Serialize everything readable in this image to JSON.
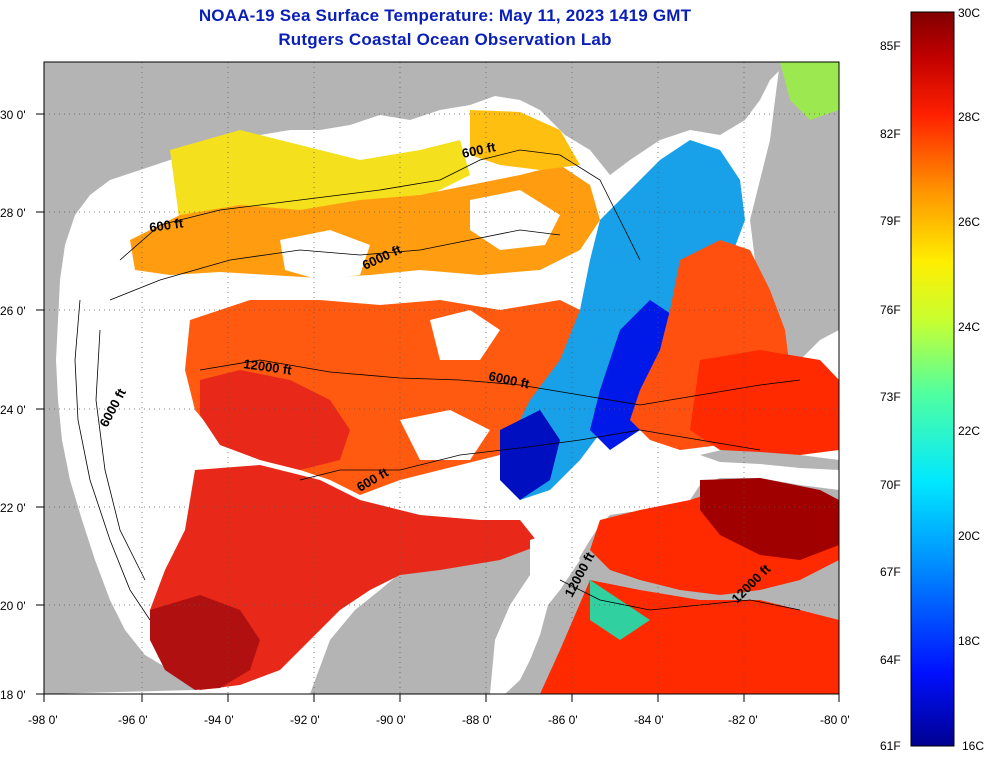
{
  "title": "NOAA-19 Sea Surface Temperature:  May 11, 2023 1419 GMT",
  "subtitle": "Rutgers Coastal Ocean Observation Lab",
  "lon_ticks": [
    "-98 0'",
    "-96 0'",
    "-94 0'",
    "-92 0'",
    "-90 0'",
    "-88 0'",
    "-86 0'",
    "-84 0'",
    "-82 0'",
    "-80 0'"
  ],
  "lat_ticks": [
    "30 0'",
    "28 0'",
    "26 0'",
    "24 0'",
    "22 0'",
    "20 0'",
    "18 0'"
  ],
  "colorbar": {
    "fahrenheit_labels": [
      "85F",
      "82F",
      "79F",
      "76F",
      "73F",
      "70F",
      "67F",
      "64F",
      "61F"
    ],
    "celsius_labels": [
      "30C",
      "28C",
      "26C",
      "24C",
      "22C",
      "20C",
      "18C",
      "16C"
    ],
    "range_c": [
      16,
      30
    ]
  },
  "contour_labels": [
    "600 ft",
    "600 ft",
    "6000 ft",
    "12000 ft",
    "6000 ft",
    "6000 ft",
    "600 ft",
    "12000 ft",
    "12000 ft"
  ],
  "colors": {
    "land": "#b4b4b4",
    "no_data": "#ffffff",
    "title": "#0a1fb8"
  }
}
